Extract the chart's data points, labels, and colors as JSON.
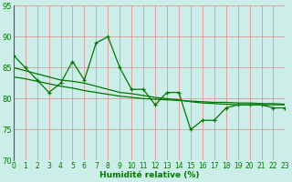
{
  "x": [
    0,
    1,
    2,
    3,
    4,
    5,
    6,
    7,
    8,
    9,
    10,
    11,
    12,
    13,
    14,
    15,
    16,
    17,
    18,
    19,
    20,
    21,
    22,
    23
  ],
  "y_main": [
    87,
    85,
    83,
    81,
    82.5,
    86,
    83,
    89,
    90,
    85,
    81.5,
    81.5,
    79,
    81,
    81,
    75,
    76.5,
    76.5,
    78.5,
    79,
    79,
    79,
    78.5,
    78.5
  ],
  "y_avg_line": [
    85.0,
    84.5,
    84.0,
    83.5,
    83.0,
    82.8,
    82.5,
    82.0,
    81.5,
    81.0,
    80.8,
    80.5,
    80.2,
    80.0,
    79.8,
    79.5,
    79.3,
    79.2,
    79.1,
    79.0,
    79.0,
    79.0,
    79.0,
    79.0
  ],
  "y_trend": [
    83.5,
    83.2,
    82.8,
    82.4,
    82.0,
    81.7,
    81.3,
    81.0,
    80.7,
    80.4,
    80.2,
    80.0,
    79.9,
    79.8,
    79.7,
    79.6,
    79.5,
    79.4,
    79.4,
    79.3,
    79.3,
    79.2,
    79.2,
    79.1
  ],
  "xlabel": "Humidité relative (%)",
  "background_color": "#cceee8",
  "grid_color": "#dd8888",
  "line_color": "#007700",
  "marker_color": "#007700",
  "ylim": [
    70,
    95
  ],
  "xlim": [
    0,
    23
  ],
  "yticks": [
    70,
    75,
    80,
    85,
    90,
    95
  ],
  "xticks": [
    0,
    1,
    2,
    3,
    4,
    5,
    6,
    7,
    8,
    9,
    10,
    11,
    12,
    13,
    14,
    15,
    16,
    17,
    18,
    19,
    20,
    21,
    22,
    23
  ],
  "tick_fontsize": 5.5,
  "xlabel_fontsize": 6.5
}
